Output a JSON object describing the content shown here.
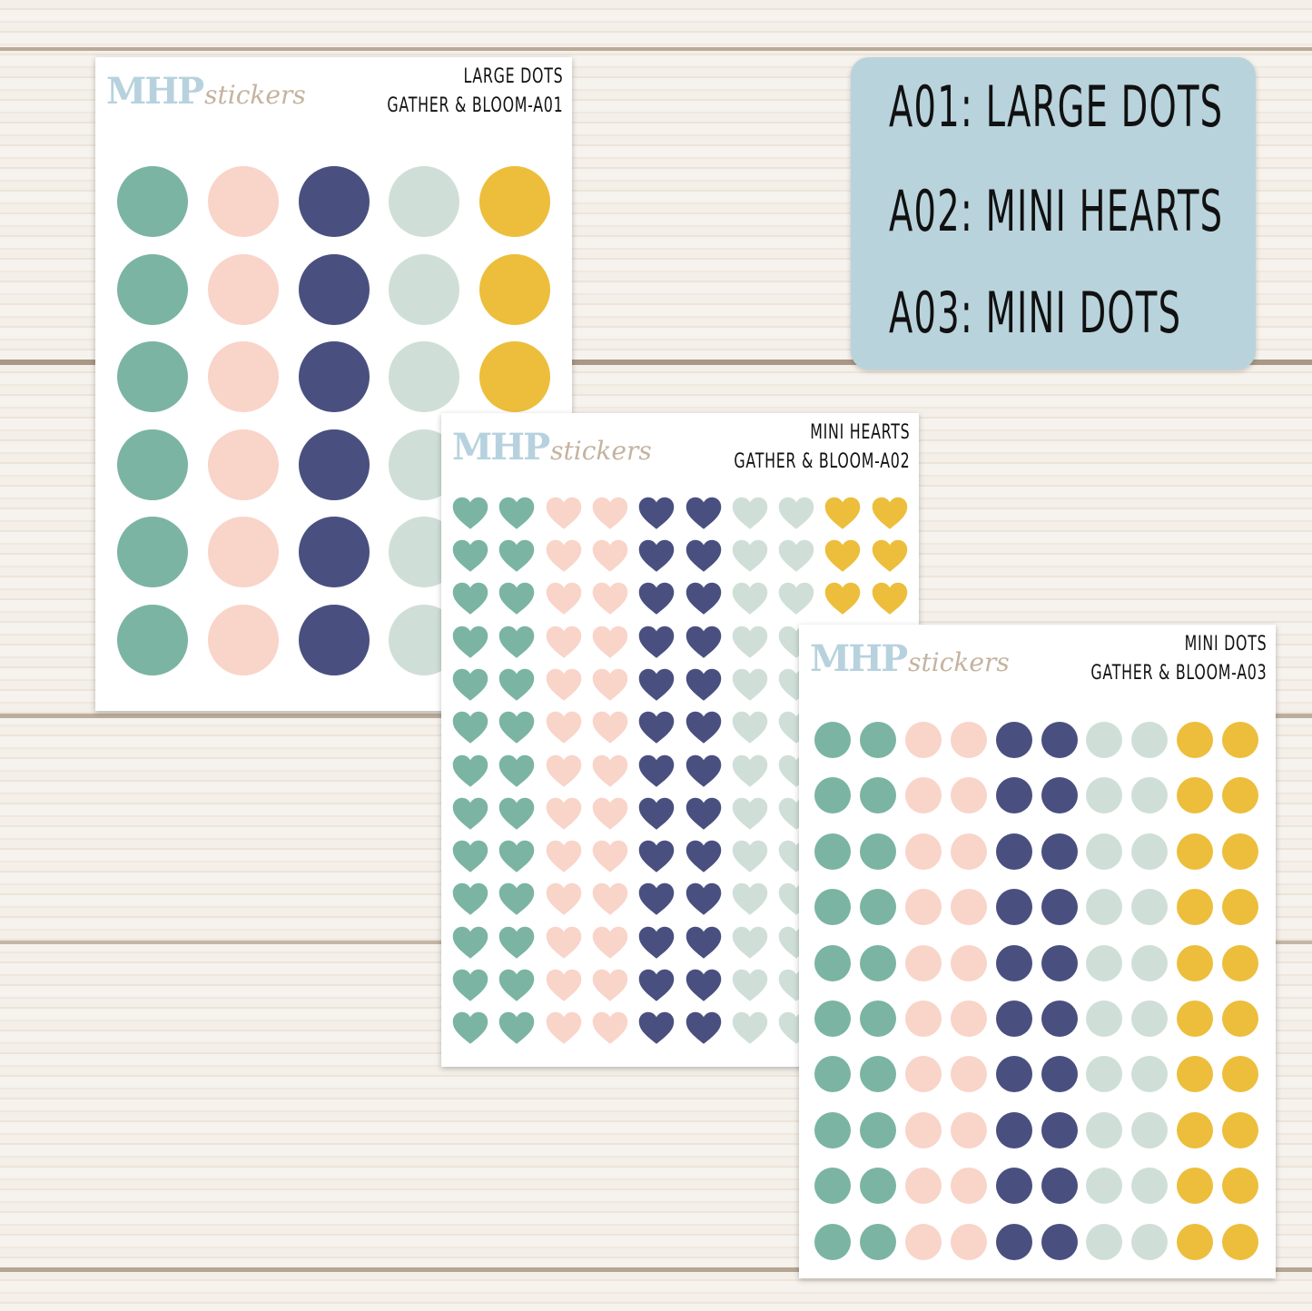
{
  "colors": {
    "teal": "#7bb4a3",
    "pink": "#f9d4c9",
    "navy": "#495080",
    "sage": "#cfdfd8",
    "yellow": "#ecbe3b"
  },
  "brand": {
    "mhp": "MHP",
    "stickers": "stickers"
  },
  "label": {
    "lines": [
      "A01: LARGE DOTS",
      "A02: MINI HEARTS",
      "A03: MINI DOTS"
    ]
  },
  "sheets": [
    {
      "id": "A01",
      "title": "LARGE DOTS",
      "subtitle": "GATHER & BLOOM-A01",
      "shape": "dot",
      "cols": 5,
      "rows": 6,
      "column_colors": [
        "teal",
        "pink",
        "navy",
        "sage",
        "yellow"
      ]
    },
    {
      "id": "A02",
      "title": "MINI HEARTS",
      "subtitle": "GATHER & BLOOM-A02",
      "shape": "heart",
      "cols": 10,
      "rows": 13,
      "column_colors": [
        "teal",
        "teal",
        "pink",
        "pink",
        "navy",
        "navy",
        "sage",
        "sage",
        "yellow",
        "yellow"
      ]
    },
    {
      "id": "A03",
      "title": "MINI DOTS",
      "subtitle": "GATHER & BLOOM-A03",
      "shape": "dot",
      "cols": 10,
      "rows": 10,
      "column_colors": [
        "teal",
        "teal",
        "pink",
        "pink",
        "navy",
        "navy",
        "sage",
        "sage",
        "yellow",
        "yellow"
      ]
    }
  ]
}
